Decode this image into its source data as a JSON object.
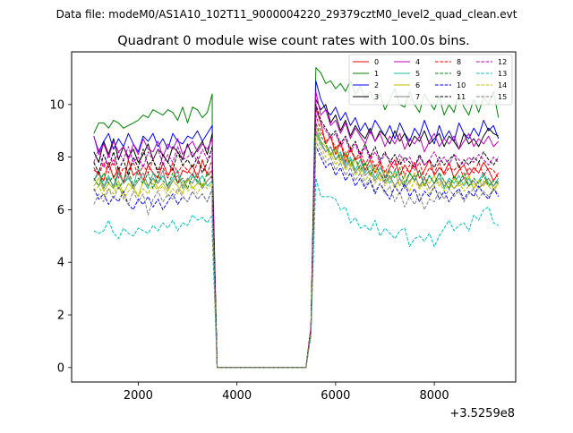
{
  "chart_data": {
    "type": "line",
    "suptitle": "Data file: modeM0/AS1A10_102T11_9000004220_29379cztM0_level2_quad_clean.evt",
    "title": "Quadrant 0 module wise count rates with 100.0s bins.",
    "xlabel": "",
    "ylabel": "",
    "x_offset_label": "+3.5259e8",
    "xlim": [
      650,
      9650
    ],
    "ylim": [
      -0.55,
      12.0
    ],
    "x_ticks": [
      2000,
      4000,
      6000,
      8000
    ],
    "y_ticks": [
      0,
      2,
      4,
      6,
      8,
      10
    ],
    "x_start": 1100,
    "x_step": 100,
    "x_end": 9300,
    "gap_start": 3600,
    "gap_end": 5400,
    "legend_position": "upper-right",
    "series": [
      {
        "name": "0",
        "color": "#ff0000",
        "dash": "solid",
        "before": [
          7.5,
          7.4,
          7.1,
          7.8,
          7.2,
          7.6,
          7.0,
          7.9,
          7.3,
          7.5,
          7.1,
          7.7,
          7.4,
          7.2,
          7.8,
          7.3,
          7.6,
          7.0,
          7.5,
          7.4,
          7.7,
          7.2,
          7.9,
          7.3,
          7.5
        ],
        "edge_before": 6.8,
        "edge_after": 1.5,
        "after": [
          9.9,
          9.3,
          8.5,
          8.8,
          8.1,
          8.6,
          7.8,
          8.3,
          7.9,
          8.0,
          7.5,
          7.9,
          7.4,
          7.8,
          7.2,
          7.6,
          7.9,
          7.3,
          7.7,
          7.4,
          7.8,
          7.2,
          7.5,
          7.9,
          7.3,
          7.6,
          7.4,
          7.8,
          7.2,
          7.5,
          7.7,
          7.3,
          7.6,
          7.4,
          7.8,
          7.5,
          7.1,
          7.4
        ]
      },
      {
        "name": "1",
        "color": "#008000",
        "dash": "solid",
        "before": [
          8.9,
          9.3,
          9.3,
          9.1,
          9.4,
          9.3,
          9.1,
          9.2,
          9.3,
          9.4,
          9.6,
          9.5,
          9.8,
          9.7,
          9.6,
          9.8,
          9.7,
          9.4,
          9.9,
          9.3,
          9.9,
          9.8,
          9.5,
          9.7,
          10.4
        ],
        "edge_before": 8.2,
        "edge_after": 1.5,
        "after": [
          11.4,
          11.2,
          10.8,
          10.9,
          10.6,
          10.8,
          10.5,
          10.9,
          10.4,
          10.7,
          10.2,
          10.5,
          10.1,
          10.4,
          9.8,
          10.2,
          10.6,
          10.0,
          9.9,
          10.5,
          10.0,
          9.7,
          10.4,
          10.1,
          9.8,
          10.3,
          9.6,
          10.0,
          9.7,
          10.4,
          9.9,
          9.6,
          10.2,
          9.7,
          10.3,
          10.0,
          10.5,
          9.5
        ]
      },
      {
        "name": "2",
        "color": "#0000ff",
        "dash": "solid",
        "before": [
          8.8,
          8.2,
          8.6,
          8.9,
          8.3,
          8.7,
          8.4,
          8.9,
          8.5,
          8.2,
          8.8,
          8.6,
          8.9,
          8.4,
          8.7,
          8.3,
          8.9,
          8.6,
          8.5,
          8.8,
          8.7,
          9.0,
          8.6,
          8.9,
          9.2
        ],
        "edge_before": 7.8,
        "edge_after": 1.5,
        "after": [
          10.9,
          10.2,
          9.8,
          9.6,
          9.9,
          9.4,
          9.7,
          9.2,
          9.5,
          9.0,
          9.3,
          8.9,
          9.4,
          9.1,
          8.8,
          9.2,
          8.7,
          9.3,
          8.9,
          8.6,
          9.1,
          8.8,
          9.4,
          8.9,
          8.5,
          9.2,
          8.7,
          9.0,
          8.6,
          9.3,
          8.9,
          8.7,
          9.1,
          8.8,
          9.4,
          9.0,
          9.2,
          8.7
        ]
      },
      {
        "name": "3",
        "color": "#000000",
        "dash": "solid",
        "before": [
          8.2,
          7.8,
          8.6,
          8.1,
          8.7,
          7.9,
          8.4,
          8.0,
          8.3,
          7.8,
          8.1,
          8.5,
          7.9,
          8.3,
          8.1,
          7.8,
          8.4,
          8.2,
          7.9,
          8.5,
          8.0,
          8.3,
          8.6,
          8.1,
          8.9
        ],
        "edge_before": 7.6,
        "edge_after": 1.5,
        "after": [
          10.2,
          9.8,
          10.0,
          9.3,
          9.6,
          9.0,
          9.4,
          8.8,
          9.2,
          8.9,
          8.7,
          9.1,
          8.6,
          9.0,
          8.8,
          8.5,
          9.0,
          8.6,
          8.9,
          8.4,
          8.8,
          8.6,
          9.0,
          8.5,
          8.7,
          8.9,
          8.4,
          8.8,
          8.6,
          8.3,
          8.9,
          8.5,
          8.7,
          8.4,
          8.8,
          9.1,
          8.9,
          8.8
        ]
      },
      {
        "name": "4",
        "color": "#bf00bf",
        "dash": "solid",
        "before": [
          8.8,
          8.1,
          8.5,
          8.0,
          8.6,
          8.2,
          8.4,
          7.9,
          8.5,
          8.1,
          8.7,
          8.3,
          8.2,
          8.6,
          8.0,
          8.5,
          8.3,
          8.7,
          8.1,
          8.4,
          8.6,
          8.2,
          8.5,
          8.3,
          8.7
        ],
        "edge_before": 7.5,
        "edge_after": 1.5,
        "after": [
          10.5,
          9.6,
          9.8,
          9.2,
          9.4,
          8.9,
          9.3,
          8.7,
          9.1,
          8.8,
          8.5,
          9.0,
          8.6,
          8.9,
          8.4,
          8.8,
          8.5,
          8.9,
          8.3,
          8.7,
          8.5,
          8.8,
          8.2,
          8.6,
          8.9,
          8.4,
          8.7,
          8.5,
          8.8,
          8.3,
          8.6,
          8.9,
          8.4,
          8.7,
          8.5,
          8.8,
          8.4,
          8.6
        ]
      },
      {
        "name": "5",
        "color": "#1abc9c",
        "dash": "solid",
        "before": [
          7.1,
          7.5,
          6.9,
          7.3,
          6.8,
          7.4,
          7.0,
          7.2,
          6.9,
          7.6,
          7.1,
          6.8,
          7.4,
          7.0,
          7.3,
          6.9,
          7.2,
          7.5,
          6.8,
          7.1,
          7.4,
          7.0,
          7.3,
          6.9,
          7.1
        ],
        "edge_before": 6.3,
        "edge_after": 1.4,
        "after": [
          8.9,
          8.5,
          8.2,
          8.4,
          7.9,
          8.2,
          7.7,
          8.0,
          7.5,
          7.9,
          7.4,
          7.7,
          7.2,
          7.6,
          7.3,
          7.0,
          7.5,
          7.2,
          6.9,
          7.4,
          7.1,
          7.5,
          6.9,
          7.3,
          7.0,
          7.4,
          6.8,
          7.2,
          7.0,
          7.3,
          6.9,
          7.2,
          6.8,
          7.1,
          7.4,
          7.0,
          6.9,
          7.2
        ]
      },
      {
        "name": "6",
        "color": "#bfbf00",
        "dash": "solid",
        "before": [
          6.9,
          7.2,
          6.7,
          7.0,
          6.8,
          7.1,
          6.6,
          7.0,
          6.8,
          6.5,
          7.1,
          6.9,
          7.2,
          6.8,
          7.0,
          6.7,
          7.1,
          6.9,
          6.6,
          7.2,
          6.8,
          7.0,
          6.9,
          7.1,
          7.3
        ],
        "edge_before": 6.2,
        "edge_after": 1.4,
        "after": [
          9.2,
          8.6,
          8.4,
          8.0,
          8.3,
          7.8,
          8.1,
          7.6,
          7.9,
          7.4,
          7.8,
          7.3,
          7.6,
          7.1,
          7.5,
          7.2,
          7.4,
          6.9,
          7.3,
          7.0,
          7.4,
          6.8,
          7.2,
          7.0,
          7.3,
          6.9,
          7.1,
          6.8,
          7.2,
          6.9,
          7.0,
          7.3,
          6.8,
          7.1,
          6.9,
          7.2,
          6.8,
          7.0
        ]
      },
      {
        "name": "7",
        "color": "#808080",
        "dash": "solid",
        "before": [
          7.1,
          7.4,
          6.8,
          7.2,
          6.9,
          7.5,
          7.0,
          7.3,
          6.8,
          7.1,
          7.4,
          6.9,
          7.2,
          7.0,
          7.5,
          6.8,
          7.1,
          7.3,
          6.9,
          7.2,
          7.0,
          7.4,
          6.8,
          7.1,
          7.3
        ],
        "edge_before": 6.4,
        "edge_after": 1.4,
        "after": [
          9.0,
          8.6,
          8.2,
          8.4,
          7.9,
          8.1,
          7.6,
          7.9,
          7.4,
          7.7,
          7.3,
          7.5,
          7.1,
          7.4,
          7.0,
          7.3,
          6.9,
          7.2,
          6.8,
          7.1,
          7.3,
          6.9,
          7.2,
          6.8,
          7.0,
          7.2,
          6.9,
          7.1,
          6.8,
          7.0,
          7.2,
          6.9,
          7.1,
          6.8,
          7.0,
          7.2,
          6.9,
          7.1
        ]
      },
      {
        "name": "8",
        "color": "#ff0000",
        "dash": "dashed",
        "before": [
          7.6,
          7.3,
          7.8,
          7.4,
          7.9,
          7.2,
          7.6,
          7.5,
          7.8,
          7.3,
          7.7,
          7.4,
          7.9,
          7.5,
          7.6,
          7.2,
          7.8,
          7.4,
          7.7,
          7.5,
          7.3,
          7.8,
          7.6,
          7.4,
          7.9
        ],
        "edge_before": 6.9,
        "edge_after": 1.5,
        "after": [
          9.6,
          9.0,
          8.6,
          8.8,
          8.3,
          8.6,
          8.0,
          8.4,
          7.9,
          8.2,
          7.7,
          8.1,
          7.6,
          7.9,
          7.4,
          7.8,
          7.5,
          7.9,
          7.3,
          7.7,
          7.5,
          7.8,
          7.2,
          7.6,
          7.4,
          7.8,
          7.3,
          7.6,
          7.5,
          7.7,
          7.2,
          7.6,
          7.4,
          7.8,
          7.3,
          7.6,
          7.5,
          7.2
        ]
      },
      {
        "name": "9",
        "color": "#008000",
        "dash": "dashed",
        "before": [
          7.2,
          6.9,
          7.4,
          7.0,
          7.3,
          6.8,
          7.1,
          7.5,
          6.9,
          7.2,
          7.0,
          7.4,
          6.8,
          7.3,
          7.1,
          6.9,
          7.4,
          7.0,
          7.2,
          6.8,
          7.3,
          7.1,
          6.9,
          7.4,
          7.2
        ],
        "edge_before": 6.5,
        "edge_after": 1.4,
        "after": [
          9.3,
          8.8,
          8.5,
          8.1,
          8.4,
          7.9,
          8.2,
          7.7,
          8.0,
          7.5,
          7.8,
          7.3,
          7.7,
          7.4,
          7.1,
          7.5,
          7.2,
          7.6,
          7.0,
          7.4,
          7.1,
          7.5,
          6.9,
          7.3,
          7.0,
          7.4,
          7.1,
          6.8,
          7.3,
          7.0,
          7.4,
          6.9,
          7.2,
          7.0,
          7.3,
          6.9,
          7.1,
          7.0
        ]
      },
      {
        "name": "10",
        "color": "#0000ff",
        "dash": "dashed",
        "before": [
          6.8,
          6.4,
          6.6,
          6.2,
          6.5,
          6.3,
          6.7,
          6.2,
          6.0,
          6.4,
          6.2,
          6.5,
          6.1,
          6.4,
          6.0,
          6.3,
          6.6,
          6.2,
          6.5,
          6.3,
          6.7,
          6.4,
          6.6,
          6.3,
          6.8
        ],
        "edge_before": 5.9,
        "edge_after": 1.3,
        "after": [
          8.4,
          8.0,
          7.6,
          7.8,
          7.3,
          7.6,
          7.1,
          7.4,
          6.9,
          7.2,
          6.8,
          7.1,
          6.6,
          7.0,
          6.7,
          6.4,
          6.9,
          6.6,
          7.0,
          6.5,
          6.8,
          6.3,
          6.7,
          6.5,
          6.9,
          6.4,
          6.7,
          6.3,
          6.6,
          6.8,
          6.4,
          6.7,
          6.5,
          6.9,
          6.6,
          6.4,
          6.8,
          6.5
        ]
      },
      {
        "name": "11",
        "color": "#000000",
        "dash": "dashed",
        "before": [
          7.8,
          7.4,
          8.1,
          7.6,
          8.2,
          7.5,
          7.9,
          7.3,
          8.0,
          7.6,
          8.3,
          7.7,
          7.9,
          7.4,
          8.1,
          7.8,
          7.5,
          8.2,
          7.7,
          7.9,
          7.6,
          8.0,
          7.4,
          7.8,
          8.4
        ],
        "edge_before": 7.1,
        "edge_after": 1.5,
        "after": [
          10.0,
          9.4,
          9.1,
          8.8,
          9.0,
          8.5,
          8.8,
          8.3,
          8.6,
          8.1,
          8.5,
          8.0,
          8.4,
          7.9,
          8.2,
          7.8,
          8.1,
          7.7,
          8.0,
          7.8,
          7.6,
          8.1,
          7.7,
          7.9,
          7.6,
          8.0,
          7.7,
          7.9,
          8.1,
          7.6,
          7.9,
          7.7,
          8.0,
          7.8,
          8.2,
          7.9,
          7.7,
          8.0
        ]
      },
      {
        "name": "12",
        "color": "#bf00bf",
        "dash": "dashed",
        "before": [
          7.8,
          8.3,
          7.6,
          8.1,
          7.7,
          8.2,
          7.9,
          8.4,
          7.8,
          8.0,
          7.6,
          8.2,
          7.9,
          8.3,
          7.7,
          8.1,
          7.8,
          8.4,
          7.9,
          8.0,
          8.2,
          7.8,
          8.3,
          7.9,
          8.1
        ],
        "edge_before": 7.0,
        "edge_after": 1.5,
        "after": [
          9.8,
          9.3,
          9.0,
          8.7,
          8.9,
          8.4,
          8.7,
          8.2,
          8.5,
          8.0,
          8.4,
          7.9,
          8.2,
          7.8,
          8.1,
          7.9,
          7.7,
          8.1,
          7.8,
          8.0,
          7.6,
          8.0,
          7.7,
          7.9,
          8.2,
          7.8,
          8.0,
          7.7,
          8.1,
          7.9,
          7.7,
          8.0,
          7.8,
          8.1,
          7.9,
          7.7,
          8.0,
          7.8
        ]
      },
      {
        "name": "13",
        "color": "#00bfbf",
        "dash": "dashed",
        "before": [
          5.2,
          5.1,
          5.2,
          5.6,
          5.1,
          4.9,
          5.3,
          5.1,
          5.0,
          5.3,
          5.2,
          5.1,
          5.4,
          5.2,
          5.5,
          5.3,
          5.6,
          5.2,
          5.5,
          5.4,
          5.8,
          5.6,
          5.7,
          5.5,
          5.8
        ],
        "edge_before": 5.0,
        "edge_after": 1.2,
        "after": [
          7.2,
          6.5,
          6.5,
          6.5,
          6.4,
          6.0,
          6.1,
          5.5,
          5.7,
          5.3,
          5.4,
          5.2,
          5.6,
          5.0,
          5.3,
          5.1,
          4.9,
          5.2,
          5.3,
          4.6,
          4.9,
          5.0,
          4.8,
          5.1,
          4.6,
          5.0,
          5.3,
          5.6,
          5.2,
          5.4,
          5.5,
          5.2,
          5.8,
          5.6,
          6.0,
          6.1,
          5.5,
          5.4
        ]
      },
      {
        "name": "14",
        "color": "#bfbf00",
        "dash": "dashed",
        "before": [
          6.7,
          6.9,
          6.5,
          6.8,
          6.6,
          7.0,
          6.4,
          6.7,
          6.9,
          6.5,
          6.8,
          6.6,
          7.0,
          6.7,
          6.9,
          6.5,
          6.8,
          6.6,
          7.1,
          6.7,
          6.9,
          6.6,
          7.0,
          6.8,
          7.0
        ],
        "edge_before": 6.1,
        "edge_after": 1.3,
        "after": [
          8.8,
          8.4,
          8.0,
          8.2,
          7.7,
          8.0,
          7.5,
          7.8,
          7.3,
          7.6,
          7.1,
          7.4,
          7.0,
          7.3,
          6.9,
          7.2,
          6.8,
          7.1,
          7.0,
          6.7,
          7.1,
          6.8,
          7.0,
          6.6,
          6.9,
          7.1,
          6.7,
          7.0,
          6.8,
          7.1,
          6.7,
          6.9,
          7.0,
          6.8,
          7.1,
          6.9,
          6.7,
          7.0
        ]
      },
      {
        "name": "15",
        "color": "#808080",
        "dash": "dashed",
        "before": [
          6.2,
          6.6,
          6.3,
          6.8,
          6.4,
          6.9,
          6.5,
          6.2,
          6.7,
          6.3,
          6.6,
          5.8,
          6.4,
          6.7,
          6.3,
          6.6,
          6.4,
          6.8,
          6.5,
          6.3,
          6.7,
          6.4,
          6.6,
          6.3,
          6.8
        ],
        "edge_before": 6.0,
        "edge_after": 1.3,
        "after": [
          8.6,
          8.2,
          7.8,
          8.0,
          7.5,
          7.8,
          7.3,
          7.6,
          7.1,
          7.4,
          6.9,
          7.2,
          6.7,
          7.0,
          6.6,
          6.9,
          6.3,
          6.7,
          6.1,
          6.5,
          6.2,
          6.6,
          6.0,
          6.4,
          6.3,
          6.7,
          6.4,
          6.8,
          6.5,
          6.7,
          6.3,
          6.6,
          6.8,
          6.4,
          6.7,
          6.5,
          6.8,
          6.6
        ]
      }
    ]
  }
}
